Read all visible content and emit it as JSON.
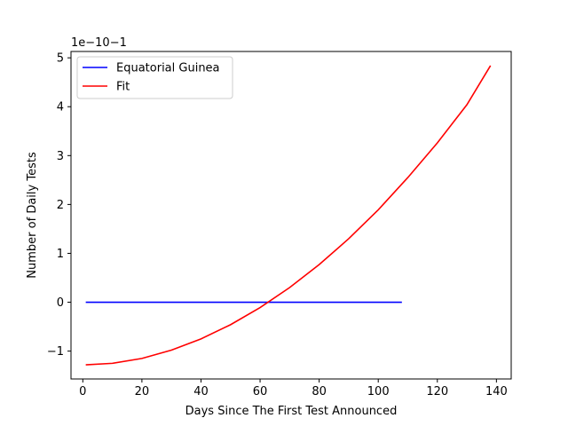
{
  "chart_data": {
    "type": "line",
    "title": "",
    "xlabel": "Days Since The First Test Announced",
    "ylabel": "Number of Daily Tests",
    "y_offset_text": "1e−10−1",
    "xlim": [
      -4,
      145
    ],
    "ylim": [
      -1.57,
      5.13
    ],
    "y_scale_note": "offset multiplier shown in corner",
    "x_ticks": [
      0,
      20,
      40,
      60,
      80,
      100,
      120,
      140
    ],
    "y_ticks": [
      -1,
      0,
      1,
      2,
      3,
      4,
      5
    ],
    "x_tick_labels": [
      "0",
      "20",
      "40",
      "60",
      "80",
      "100",
      "120",
      "140"
    ],
    "y_tick_labels": [
      "−1",
      "0",
      "1",
      "2",
      "3",
      "4",
      "5"
    ],
    "grid": false,
    "legend_position": "upper-left",
    "series": [
      {
        "name": "Equatorial Guinea",
        "color": "#0000ff",
        "x": [
          1,
          108
        ],
        "y": [
          0,
          0
        ]
      },
      {
        "name": "Fit",
        "color": "#ff0000",
        "x": [
          1,
          10,
          20,
          30,
          40,
          50,
          60,
          70,
          80,
          90,
          100,
          110,
          120,
          130,
          138
        ],
        "y": [
          -1.28,
          -1.25,
          -1.15,
          -0.98,
          -0.75,
          -0.46,
          -0.11,
          0.3,
          0.77,
          1.3,
          1.89,
          2.55,
          3.26,
          4.04,
          4.84
        ]
      }
    ]
  }
}
